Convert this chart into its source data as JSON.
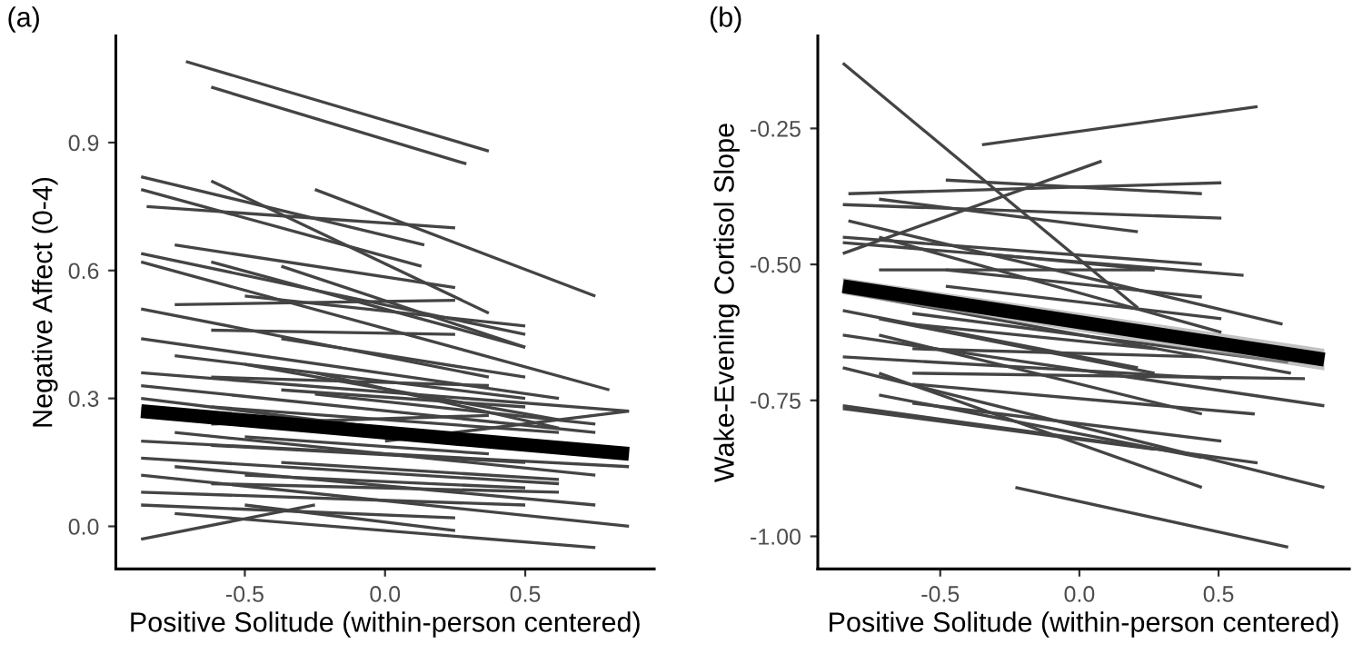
{
  "chart_data": [
    {
      "type": "line",
      "title": "(a)",
      "xlabel": "Positive Solitude (within-person centered)",
      "ylabel": "Negative Affect (0-4)",
      "xlim": [
        -0.96,
        0.96
      ],
      "ylim": [
        -0.1,
        1.15
      ],
      "xticks": [
        {
          "value": -0.5,
          "label": "-0.5"
        },
        {
          "value": 0,
          "label": "0.0"
        },
        {
          "value": 0.5,
          "label": "0.5"
        }
      ],
      "yticks": [
        {
          "value": 0,
          "label": "0.0"
        },
        {
          "value": 0.3,
          "label": "0.3"
        },
        {
          "value": 0.6,
          "label": "0.6"
        },
        {
          "value": 0.9,
          "label": "0.9"
        }
      ],
      "grid": false,
      "legend": false,
      "marker": "none",
      "line_style": "solid",
      "series": [
        {
          "color": "#444444",
          "x": [
            -0.71,
            0.37
          ],
          "values": [
            1.09,
            0.88
          ]
        },
        {
          "color": "#444444",
          "x": [
            -0.62,
            0.29
          ],
          "values": [
            1.03,
            0.85
          ]
        },
        {
          "color": "#444444",
          "x": [
            -0.87,
            0.14
          ],
          "values": [
            0.82,
            0.66
          ]
        },
        {
          "color": "#444444",
          "x": [
            -0.87,
            0.13
          ],
          "values": [
            0.79,
            0.61
          ]
        },
        {
          "color": "#444444",
          "x": [
            -0.85,
            0.25
          ],
          "values": [
            0.75,
            0.7
          ]
        },
        {
          "color": "#444444",
          "x": [
            -0.62,
            0.37
          ],
          "values": [
            0.81,
            0.5
          ]
        },
        {
          "color": "#444444",
          "x": [
            -0.25,
            0.75
          ],
          "values": [
            0.79,
            0.54
          ]
        },
        {
          "color": "#444444",
          "x": [
            -0.75,
            0.25
          ],
          "values": [
            0.66,
            0.56
          ]
        },
        {
          "color": "#444444",
          "x": [
            -0.87,
            0.5
          ],
          "values": [
            0.64,
            0.45
          ]
        },
        {
          "color": "#444444",
          "x": [
            -0.87,
            0.8
          ],
          "values": [
            0.62,
            0.32
          ]
        },
        {
          "color": "#444444",
          "x": [
            -0.62,
            0.5
          ],
          "values": [
            0.62,
            0.42
          ]
        },
        {
          "color": "#444444",
          "x": [
            -0.37,
            0.5
          ],
          "values": [
            0.61,
            0.42
          ]
        },
        {
          "color": "#444444",
          "x": [
            -0.75,
            0.25
          ],
          "values": [
            0.52,
            0.53
          ]
        },
        {
          "color": "#444444",
          "x": [
            -0.87,
            0.37
          ],
          "values": [
            0.51,
            0.35
          ]
        },
        {
          "color": "#444444",
          "x": [
            -0.87,
            0.62
          ],
          "values": [
            0.44,
            0.3
          ]
        },
        {
          "color": "#444444",
          "x": [
            -0.62,
            0.25
          ],
          "values": [
            0.46,
            0.45
          ]
        },
        {
          "color": "#444444",
          "x": [
            -0.5,
            0.5
          ],
          "values": [
            0.54,
            0.47
          ]
        },
        {
          "color": "#444444",
          "x": [
            -0.87,
            0.87
          ],
          "values": [
            0.36,
            0.27
          ]
        },
        {
          "color": "#444444",
          "x": [
            -0.75,
            0.5
          ],
          "values": [
            0.4,
            0.3
          ]
        },
        {
          "color": "#444444",
          "x": [
            -0.62,
            0.37
          ],
          "values": [
            0.35,
            0.33
          ]
        },
        {
          "color": "#444444",
          "x": [
            -0.87,
            0.75
          ],
          "values": [
            0.33,
            0.22
          ]
        },
        {
          "color": "#444444",
          "x": [
            -0.5,
            0.62
          ],
          "values": [
            0.38,
            0.25
          ]
        },
        {
          "color": "#444444",
          "x": [
            -0.87,
            0.37
          ],
          "values": [
            0.3,
            0.2
          ]
        },
        {
          "color": "#444444",
          "x": [
            -0.62,
            0.62
          ],
          "values": [
            0.28,
            0.22
          ]
        },
        {
          "color": "#444444",
          "x": [
            -0.37,
            0.5
          ],
          "values": [
            0.32,
            0.28
          ]
        },
        {
          "color": "#444444",
          "x": [
            -0.87,
            0.87
          ],
          "values": [
            0.2,
            0.14
          ]
        },
        {
          "color": "#444444",
          "x": [
            -0.75,
            0.75
          ],
          "values": [
            0.22,
            0.12
          ]
        },
        {
          "color": "#444444",
          "x": [
            -0.62,
            0.5
          ],
          "values": [
            0.19,
            0.15
          ]
        },
        {
          "color": "#444444",
          "x": [
            -0.87,
            0.62
          ],
          "values": [
            0.16,
            0.1
          ]
        },
        {
          "color": "#444444",
          "x": [
            -0.5,
            0.37
          ],
          "values": [
            0.21,
            0.17
          ]
        },
        {
          "color": "#444444",
          "x": [
            -0.87,
            0.87
          ],
          "values": [
            0.12,
            0.0
          ]
        },
        {
          "color": "#444444",
          "x": [
            -0.75,
            0.75
          ],
          "values": [
            0.14,
            0.05
          ]
        },
        {
          "color": "#444444",
          "x": [
            -0.62,
            0.62
          ],
          "values": [
            0.1,
            0.08
          ]
        },
        {
          "color": "#444444",
          "x": [
            -0.87,
            0.5
          ],
          "values": [
            0.08,
            0.05
          ]
        },
        {
          "color": "#444444",
          "x": [
            -0.5,
            0.5
          ],
          "values": [
            0.12,
            0.09
          ]
        },
        {
          "color": "#444444",
          "x": [
            -0.87,
            0.25
          ],
          "values": [
            0.05,
            0.02
          ]
        },
        {
          "color": "#444444",
          "x": [
            -0.75,
            0.75
          ],
          "values": [
            0.03,
            -0.05
          ]
        },
        {
          "color": "#444444",
          "x": [
            -0.87,
            -0.25
          ],
          "values": [
            -0.03,
            0.05
          ]
        },
        {
          "color": "#444444",
          "x": [
            -0.37,
            0.62
          ],
          "values": [
            0.15,
            0.11
          ]
        },
        {
          "color": "#444444",
          "x": [
            -0.25,
            0.75
          ],
          "values": [
            0.31,
            0.24
          ]
        },
        {
          "color": "#444444",
          "x": [
            -0.62,
            0.37
          ],
          "values": [
            0.24,
            0.26
          ]
        },
        {
          "color": "#444444",
          "x": [
            0.0,
            0.87
          ],
          "values": [
            0.2,
            0.27
          ]
        },
        {
          "color": "#444444",
          "x": [
            -0.5,
            0.25
          ],
          "values": [
            0.05,
            -0.01
          ]
        },
        {
          "color": "#444444",
          "x": [
            -0.37,
            0.5
          ],
          "values": [
            0.44,
            0.35
          ]
        },
        {
          "color": "#444444",
          "x": [
            -0.25,
            0.62
          ],
          "values": [
            0.36,
            0.23
          ]
        },
        {
          "color": "#000000",
          "x": [
            -0.87,
            0.87
          ],
          "values": [
            0.27,
            0.17
          ],
          "lower": [
            0.26,
            0.16
          ],
          "upper": [
            0.28,
            0.18
          ]
        }
      ]
    },
    {
      "type": "line",
      "title": "(b)",
      "xlabel": "Positive Solitude (within-person centered)",
      "ylabel": "Wake-Evening Cortisol Slope",
      "xlim": [
        -0.94,
        0.97
      ],
      "ylim": [
        -1.06,
        -0.08
      ],
      "xticks": [
        {
          "value": -0.5,
          "label": "-0.5"
        },
        {
          "value": 0,
          "label": "0.0"
        },
        {
          "value": 0.5,
          "label": "0.5"
        }
      ],
      "yticks": [
        {
          "value": -1.0,
          "label": "-1.00"
        },
        {
          "value": -0.75,
          "label": "-0.75"
        },
        {
          "value": -0.5,
          "label": "-0.50"
        },
        {
          "value": -0.25,
          "label": "-0.25"
        }
      ],
      "grid": false,
      "legend": false,
      "marker": "none",
      "line_style": "solid",
      "series": [
        {
          "color": "#444444",
          "x": [
            -0.85,
            0.21
          ],
          "values": [
            -0.13,
            -0.58
          ]
        },
        {
          "color": "#444444",
          "x": [
            -0.35,
            0.64
          ],
          "values": [
            -0.28,
            -0.21
          ]
        },
        {
          "color": "#444444",
          "x": [
            -0.85,
            0.08
          ],
          "values": [
            -0.48,
            -0.31
          ]
        },
        {
          "color": "#444444",
          "x": [
            -0.83,
            0.51
          ],
          "values": [
            -0.37,
            -0.35
          ]
        },
        {
          "color": "#444444",
          "x": [
            -0.48,
            0.44
          ],
          "values": [
            -0.345,
            -0.37
          ]
        },
        {
          "color": "#444444",
          "x": [
            -0.85,
            0.51
          ],
          "values": [
            -0.39,
            -0.415
          ]
        },
        {
          "color": "#444444",
          "x": [
            -0.72,
            0.21
          ],
          "values": [
            -0.38,
            -0.44
          ]
        },
        {
          "color": "#444444",
          "x": [
            -0.85,
            0.44
          ],
          "values": [
            -0.45,
            -0.5
          ]
        },
        {
          "color": "#444444",
          "x": [
            -0.85,
            0.59
          ],
          "values": [
            -0.46,
            -0.52
          ]
        },
        {
          "color": "#444444",
          "x": [
            -0.83,
            0.73
          ],
          "values": [
            -0.42,
            -0.61
          ]
        },
        {
          "color": "#444444",
          "x": [
            -0.72,
            0.51
          ],
          "values": [
            -0.45,
            -0.625
          ]
        },
        {
          "color": "#444444",
          "x": [
            -0.72,
            0.27
          ],
          "values": [
            -0.51,
            -0.51
          ]
        },
        {
          "color": "#444444",
          "x": [
            -0.85,
            0.76
          ],
          "values": [
            -0.55,
            -0.7
          ]
        },
        {
          "color": "#444444",
          "x": [
            -0.6,
            0.75
          ],
          "values": [
            -0.59,
            -0.68
          ]
        },
        {
          "color": "#444444",
          "x": [
            -0.85,
            0.88
          ],
          "values": [
            -0.63,
            -0.76
          ]
        },
        {
          "color": "#444444",
          "x": [
            -0.85,
            0.51
          ],
          "values": [
            -0.67,
            -0.71
          ]
        },
        {
          "color": "#444444",
          "x": [
            -0.85,
            0.88
          ],
          "values": [
            -0.69,
            -0.91
          ]
        },
        {
          "color": "#444444",
          "x": [
            -0.72,
            0.44
          ],
          "values": [
            -0.63,
            -0.775
          ]
        },
        {
          "color": "#444444",
          "x": [
            -0.72,
            0.44
          ],
          "values": [
            -0.7,
            -0.91
          ]
        },
        {
          "color": "#444444",
          "x": [
            -0.85,
            0.64
          ],
          "values": [
            -0.76,
            -0.865
          ]
        },
        {
          "color": "#444444",
          "x": [
            -0.85,
            0.27
          ],
          "values": [
            -0.765,
            -0.84
          ]
        },
        {
          "color": "#444444",
          "x": [
            -0.72,
            0.44
          ],
          "values": [
            -0.74,
            -0.855
          ]
        },
        {
          "color": "#444444",
          "x": [
            -0.23,
            0.75
          ],
          "values": [
            -0.91,
            -1.02
          ]
        },
        {
          "color": "#444444",
          "x": [
            -0.6,
            0.81
          ],
          "values": [
            -0.7,
            -0.71
          ]
        },
        {
          "color": "#444444",
          "x": [
            -0.6,
            0.63
          ],
          "values": [
            -0.72,
            -0.775
          ]
        },
        {
          "color": "#444444",
          "x": [
            -0.6,
            0.44
          ],
          "values": [
            -0.655,
            -0.67
          ]
        },
        {
          "color": "#444444",
          "x": [
            -0.48,
            0.51
          ],
          "values": [
            -0.54,
            -0.6
          ]
        },
        {
          "color": "#444444",
          "x": [
            -0.6,
            0.27
          ],
          "values": [
            -0.61,
            -0.655
          ]
        },
        {
          "color": "#444444",
          "x": [
            -0.35,
            0.27
          ],
          "values": [
            -0.48,
            -0.51
          ]
        },
        {
          "color": "#444444",
          "x": [
            -0.48,
            0.44
          ],
          "values": [
            -0.51,
            -0.56
          ]
        },
        {
          "color": "#444444",
          "x": [
            -0.85,
            0.21
          ],
          "values": [
            -0.585,
            -0.69
          ]
        },
        {
          "color": "#444444",
          "x": [
            -0.6,
            0.51
          ],
          "values": [
            -0.755,
            -0.825
          ]
        },
        {
          "color": "#444444",
          "x": [
            -0.72,
            0.27
          ],
          "values": [
            -0.6,
            -0.7
          ]
        },
        {
          "color": "#000000",
          "x": [
            -0.85,
            0.88
          ],
          "values": [
            -0.54,
            -0.675
          ],
          "lower": [
            -0.555,
            -0.695
          ],
          "upper": [
            -0.525,
            -0.655
          ]
        }
      ]
    }
  ]
}
